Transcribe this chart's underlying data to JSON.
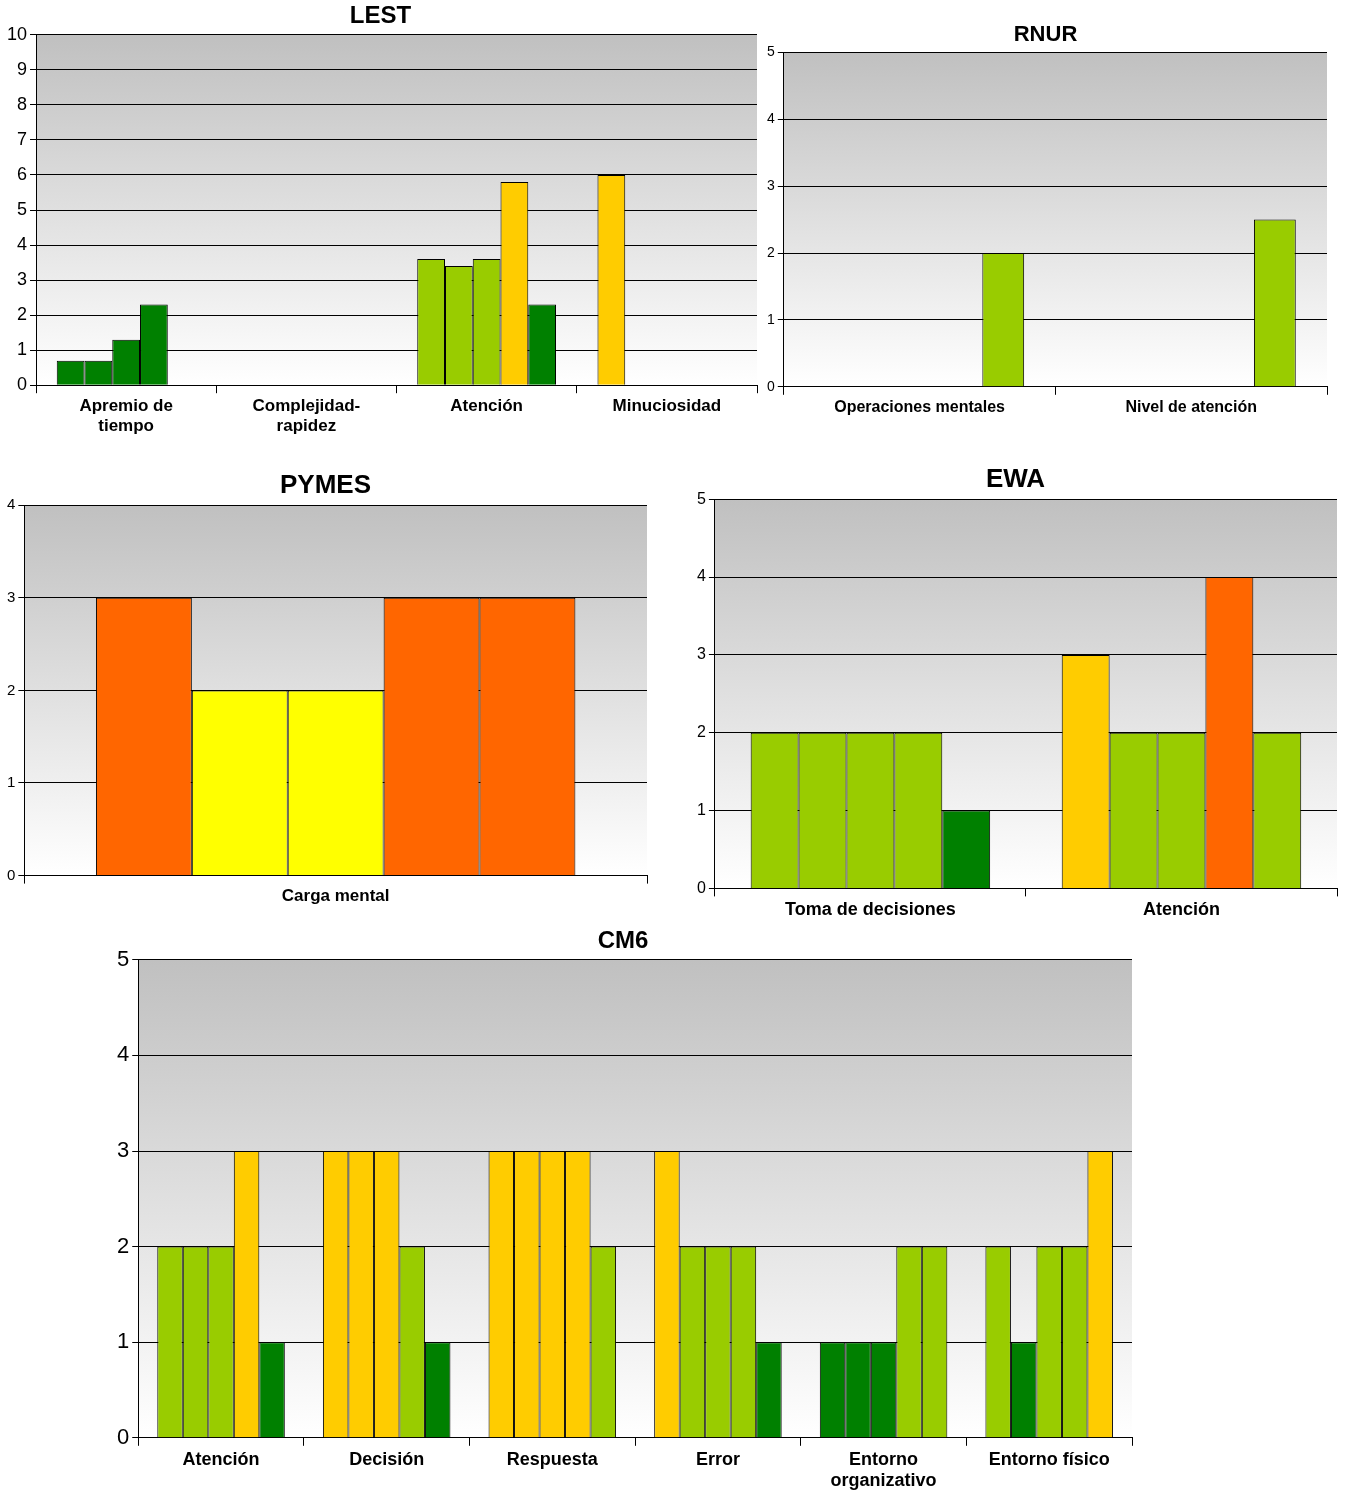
{
  "chart_data": [
    {
      "type": "bar",
      "title": "LEST",
      "categories": [
        "Apremio de tiempo",
        "Complejidad-rapidez",
        "Atención",
        "Minuciosidad"
      ],
      "ylim": [
        0,
        10
      ],
      "yticks": [
        0,
        1,
        2,
        3,
        4,
        5,
        6,
        7,
        8,
        9,
        10
      ],
      "grid": "y",
      "series": [
        {
          "values": [
            0.7,
            null,
            3.6,
            6
          ],
          "colors": [
            "#008000",
            null,
            "#99cc00",
            "#ffcc00"
          ]
        },
        {
          "values": [
            0.7,
            null,
            3.4,
            null
          ],
          "colors": [
            "#008000",
            null,
            "#99cc00",
            null
          ]
        },
        {
          "values": [
            1.3,
            null,
            3.6,
            null
          ],
          "colors": [
            "#008000",
            null,
            "#99cc00",
            null
          ]
        },
        {
          "values": [
            2.3,
            null,
            5.8,
            null
          ],
          "colors": [
            "#008000",
            null,
            "#ffcc00",
            null
          ]
        },
        {
          "values": [
            null,
            null,
            2.3,
            null
          ],
          "colors": [
            null,
            null,
            "#008000",
            null
          ]
        }
      ]
    },
    {
      "type": "bar",
      "title": "RNUR",
      "categories": [
        "Operaciones mentales",
        "Nivel de atención"
      ],
      "ylim": [
        0,
        5
      ],
      "yticks": [
        0,
        1,
        2,
        3,
        4,
        5
      ],
      "grid": "y",
      "series": [
        {
          "values": [
            null,
            null
          ],
          "colors": [
            null,
            null
          ]
        },
        {
          "values": [
            null,
            null
          ],
          "colors": [
            null,
            null
          ]
        },
        {
          "values": [
            null,
            null
          ],
          "colors": [
            null,
            null
          ]
        },
        {
          "values": [
            null,
            null
          ],
          "colors": [
            null,
            null
          ]
        },
        {
          "values": [
            2,
            2.5
          ],
          "colors": [
            "#99cc00",
            "#99cc00"
          ]
        }
      ]
    },
    {
      "type": "bar",
      "title": "PYMES",
      "categories": [
        "Carga mental"
      ],
      "ylim": [
        0,
        4
      ],
      "yticks": [
        0,
        1,
        2,
        3,
        4
      ],
      "grid": "y",
      "series": [
        {
          "values": [
            3
          ],
          "colors": [
            "#ff6600"
          ]
        },
        {
          "values": [
            2
          ],
          "colors": [
            "#ffff00"
          ]
        },
        {
          "values": [
            2
          ],
          "colors": [
            "#ffff00"
          ]
        },
        {
          "values": [
            3
          ],
          "colors": [
            "#ff6600"
          ]
        },
        {
          "values": [
            3
          ],
          "colors": [
            "#ff6600"
          ]
        }
      ]
    },
    {
      "type": "bar",
      "title": "EWA",
      "categories": [
        "Toma de decisiones",
        "Atención"
      ],
      "ylim": [
        0,
        5
      ],
      "yticks": [
        0,
        1,
        2,
        3,
        4,
        5
      ],
      "grid": "y",
      "series": [
        {
          "values": [
            2,
            3
          ],
          "colors": [
            "#99cc00",
            "#ffcc00"
          ]
        },
        {
          "values": [
            2,
            2
          ],
          "colors": [
            "#99cc00",
            "#99cc00"
          ]
        },
        {
          "values": [
            2,
            2
          ],
          "colors": [
            "#99cc00",
            "#99cc00"
          ]
        },
        {
          "values": [
            2,
            4
          ],
          "colors": [
            "#99cc00",
            "#ff6600"
          ]
        },
        {
          "values": [
            1,
            2
          ],
          "colors": [
            "#008000",
            "#99cc00"
          ]
        }
      ]
    },
    {
      "type": "bar",
      "title": "CM6",
      "categories": [
        "Atención",
        "Decisión",
        "Respuesta",
        "Error",
        "Entorno organizativo",
        "Entorno físico"
      ],
      "ylim": [
        0,
        5
      ],
      "yticks": [
        0,
        1,
        2,
        3,
        4,
        5
      ],
      "grid": "y",
      "series": [
        {
          "values": [
            2,
            3,
            3,
            3,
            1,
            2
          ],
          "colors": [
            "#99cc00",
            "#ffcc00",
            "#ffcc00",
            "#ffcc00",
            "#008000",
            "#99cc00"
          ]
        },
        {
          "values": [
            2,
            3,
            3,
            2,
            1,
            1
          ],
          "colors": [
            "#99cc00",
            "#ffcc00",
            "#ffcc00",
            "#99cc00",
            "#008000",
            "#008000"
          ]
        },
        {
          "values": [
            2,
            3,
            3,
            2,
            1,
            2
          ],
          "colors": [
            "#99cc00",
            "#ffcc00",
            "#ffcc00",
            "#99cc00",
            "#008000",
            "#99cc00"
          ]
        },
        {
          "values": [
            3,
            2,
            3,
            2,
            2,
            2
          ],
          "colors": [
            "#ffcc00",
            "#99cc00",
            "#ffcc00",
            "#99cc00",
            "#99cc00",
            "#99cc00"
          ]
        },
        {
          "values": [
            1,
            1,
            2,
            1,
            2,
            3
          ],
          "colors": [
            "#008000",
            "#008000",
            "#99cc00",
            "#008000",
            "#99cc00",
            "#ffcc00"
          ]
        }
      ]
    }
  ]
}
